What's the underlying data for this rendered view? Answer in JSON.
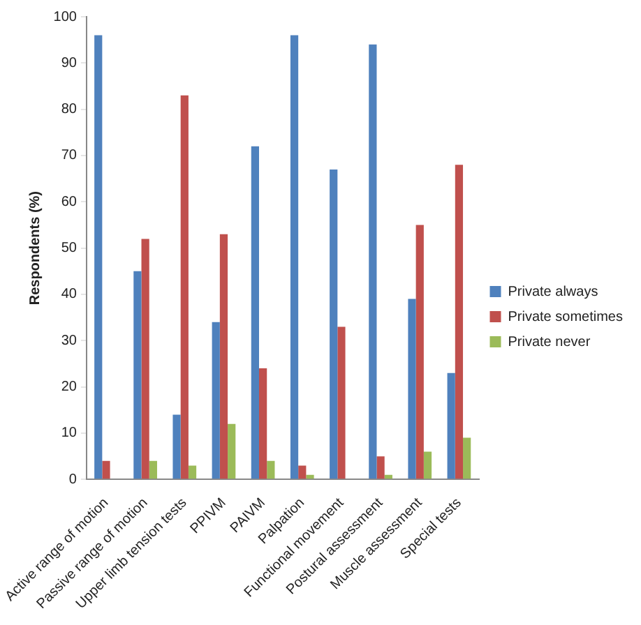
{
  "chart_data": {
    "type": "bar",
    "ylabel": "Respondents (%)",
    "categories": [
      "Active range of motion",
      "Passive range of motion",
      "Upper limb tension tests",
      "PPIVM",
      "PAIVM",
      "Palpation",
      "Functional movement",
      "Postural assessment",
      "Muscle assessment",
      "Special tests"
    ],
    "series": [
      {
        "name": "Private always",
        "color": "#4f81bd",
        "values": [
          96,
          45,
          14,
          34,
          72,
          96,
          67,
          94,
          39,
          23
        ]
      },
      {
        "name": "Private sometimes",
        "color": "#c0504d",
        "values": [
          4,
          52,
          83,
          53,
          24,
          3,
          33,
          5,
          55,
          68
        ]
      },
      {
        "name": "Private never",
        "color": "#9bbb59",
        "values": [
          0,
          4,
          3,
          12,
          4,
          1,
          0,
          1,
          6,
          9
        ]
      }
    ],
    "ylim": [
      0,
      100
    ],
    "yticks": [
      0,
      10,
      20,
      30,
      40,
      50,
      60,
      70,
      80,
      90,
      100
    ],
    "grid": false,
    "legend": "right"
  }
}
